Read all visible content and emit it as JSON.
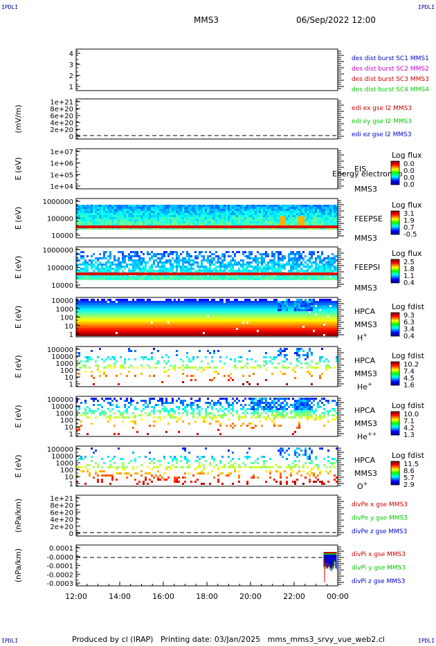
{
  "corner_label": "IPDLI",
  "header": {
    "spacecraft": "MMS3",
    "datetime": "06/Sep/2022 12:00"
  },
  "footer": {
    "producer": "Produced by cl (IRAP)",
    "printing_date": "Printing date: 03/Jan/2025",
    "filename": "mms_mms3_srvy_vue_web2.cl"
  },
  "x_axis": {
    "ticks": [
      "12:00",
      "14:00",
      "16:00",
      "18:00",
      "20:00",
      "22:00",
      "00:00"
    ]
  },
  "chart_data": [
    {
      "type": "line",
      "panel": "sc_position",
      "ylabel": "",
      "yticks": [
        "4",
        "3",
        "2",
        "1"
      ],
      "legend": [
        {
          "text": "des dist burst SC1 MMS1",
          "color": "#0000c8"
        },
        {
          "text": "des dist burst SC2 MMS2",
          "color": "#c800c8"
        },
        {
          "text": "des dist burst SC3 MMS3",
          "color": "#c80000"
        },
        {
          "text": "des dist burst SC4 MMS4",
          "color": "#00c800"
        }
      ]
    },
    {
      "type": "line",
      "panel": "edi_e",
      "ylabel": "(mV/m)",
      "yticks": [
        "1e+21",
        "8e+20",
        "6e+20",
        "4e+20",
        "2e+20",
        "0"
      ],
      "legend": [
        {
          "text": "edi ex gse l2 MMS3",
          "color": "#c80000"
        },
        {
          "text": "edi ey gse l2 MMS3",
          "color": "#00c800"
        },
        {
          "text": "edi ez gse l2 MMS3",
          "color": "#0000c8"
        }
      ]
    },
    {
      "type": "heatmap",
      "panel": "eis",
      "ylabel": "E (eV)",
      "yticks": [
        "1e+07",
        "1e+06",
        "1e+05",
        "1e+04"
      ],
      "labels": [
        "EIS",
        "MMS3"
      ],
      "overlay_text": "Energy electron to",
      "colorbar": {
        "title": "Log flux",
        "ticks": [
          "0.0",
          "0.0",
          "0.0",
          "0.0"
        ]
      }
    },
    {
      "type": "heatmap",
      "panel": "feeps_e",
      "ylabel": "E (eV)",
      "yticks": [
        "1000000",
        "100000",
        "10000"
      ],
      "labels": [
        "FEEPSE",
        "MMS3"
      ],
      "colorbar": {
        "title": "Log flux",
        "ticks": [
          "3.1",
          "1.9",
          "0.7",
          "-0.5"
        ]
      }
    },
    {
      "type": "heatmap",
      "panel": "feeps_i",
      "ylabel": "E (eV)",
      "yticks": [
        "1000000",
        "100000",
        "10000"
      ],
      "labels": [
        "FEEPSI",
        "MMS3"
      ],
      "colorbar": {
        "title": "Log flux",
        "ticks": [
          "2.5",
          "1.8",
          "1.1",
          "0.4"
        ]
      }
    },
    {
      "type": "heatmap",
      "panel": "hpca_h",
      "ylabel": "E (eV)",
      "yticks": [
        "10000",
        "1000",
        "100",
        "10",
        "1"
      ],
      "labels": [
        "HPCA",
        "MMS3",
        "H+"
      ],
      "colorbar": {
        "title": "Log fdist",
        "ticks": [
          "9.3",
          "6.3",
          "3.4",
          "0.4"
        ]
      }
    },
    {
      "type": "heatmap",
      "panel": "hpca_he",
      "ylabel": "E (eV)",
      "yticks": [
        "100000",
        "10000",
        "1000",
        "100",
        "10",
        "1"
      ],
      "labels": [
        "HPCA",
        "MMS3",
        "He+"
      ],
      "colorbar": {
        "title": "Log fdist",
        "ticks": [
          "10.2",
          "7.4",
          "4.5",
          "1.6"
        ]
      }
    },
    {
      "type": "heatmap",
      "panel": "hpca_hepp",
      "ylabel": "E (eV)",
      "yticks": [
        "100000",
        "10000",
        "1000",
        "100",
        "10",
        "1"
      ],
      "labels": [
        "HPCA",
        "MMS3",
        "He++"
      ],
      "colorbar": {
        "title": "Log fdist",
        "ticks": [
          "10.0",
          "7.1",
          "4.2",
          "1.3"
        ]
      }
    },
    {
      "type": "heatmap",
      "panel": "hpca_o",
      "ylabel": "E (eV)",
      "yticks": [
        "100000",
        "10000",
        "1000",
        "100",
        "10",
        "1"
      ],
      "labels": [
        "HPCA",
        "MMS3",
        "O+"
      ],
      "colorbar": {
        "title": "Log fdist",
        "ticks": [
          "11.5",
          "8.6",
          "5.7",
          "2.9"
        ]
      }
    },
    {
      "type": "line",
      "panel": "divpe",
      "ylabel": "(nPa/km)",
      "yticks": [
        "1e+21",
        "8e+20",
        "6e+20",
        "4e+20",
        "2e+20",
        "0"
      ],
      "legend": [
        {
          "text": "divPe x gse MMS3",
          "color": "#c80000"
        },
        {
          "text": "divPe y gse MMS3",
          "color": "#00c800"
        },
        {
          "text": "divPe z gse MMS3",
          "color": "#0000c8"
        }
      ]
    },
    {
      "type": "line",
      "panel": "divpi",
      "ylabel": "(nPa/km)",
      "yticks": [
        "0.0001",
        "-0.0000",
        "-0.0001",
        "-0.0002",
        "-0.0003"
      ],
      "legend": [
        {
          "text": "divPi x gse MMS3",
          "color": "#c80000"
        },
        {
          "text": "divPi y gse MMS3",
          "color": "#00c800"
        },
        {
          "text": "divPi z gse MMS3",
          "color": "#0000c8"
        }
      ]
    }
  ]
}
